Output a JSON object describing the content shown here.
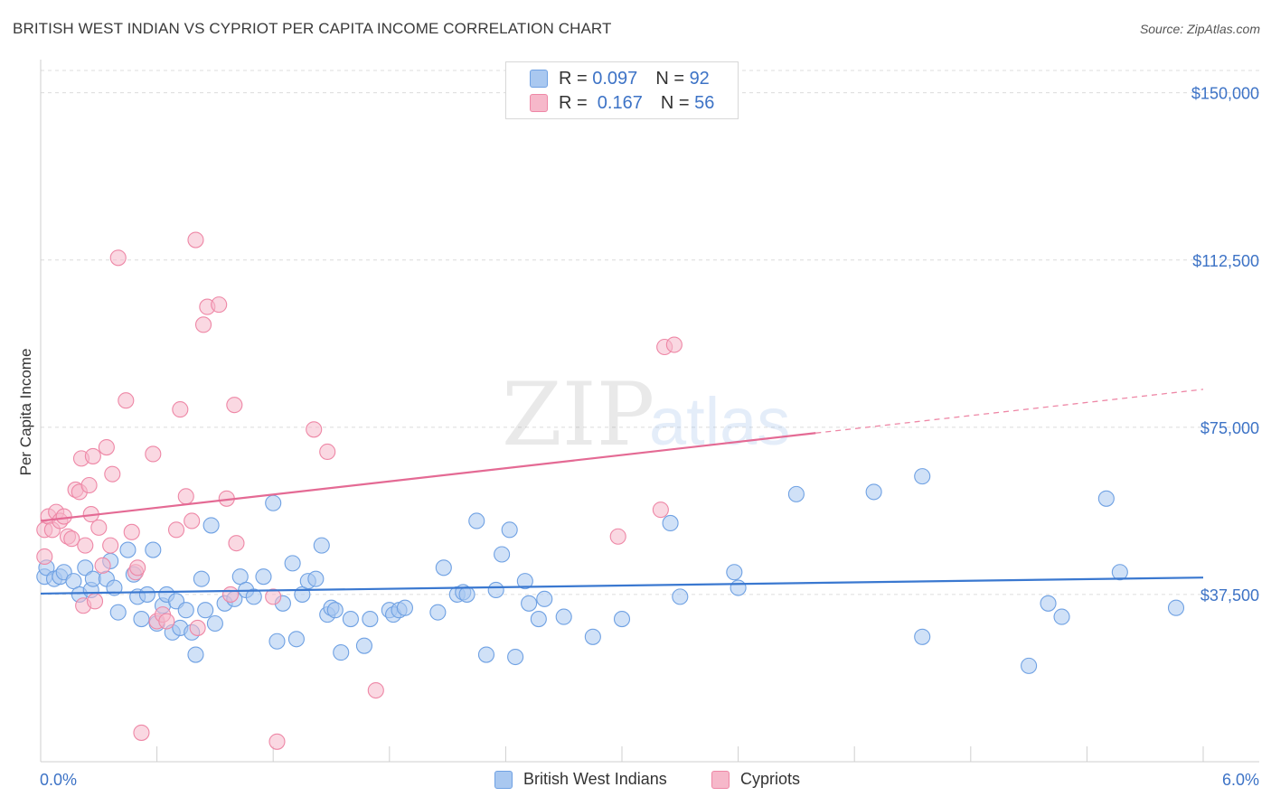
{
  "title": "BRITISH WEST INDIAN VS CYPRIOT PER CAPITA INCOME CORRELATION CHART",
  "source": "Source: ZipAtlas.com",
  "watermark": {
    "zip": "ZIP",
    "atlas": "atlas"
  },
  "legend": {
    "rows": [
      {
        "r_label": "R = ",
        "r_value": "0.097",
        "n_label": "N = ",
        "n_value": "92",
        "color": "#a9c8f0"
      },
      {
        "r_label": "R = ",
        "r_value": " 0.167",
        "n_label": "N = ",
        "n_value": "56",
        "color": "#f6b8ca"
      }
    ]
  },
  "bottom_legend": {
    "items": [
      {
        "label": "British West Indians",
        "color": "#a9c8f0"
      },
      {
        "label": "Cypriots",
        "color": "#f6b8ca"
      }
    ]
  },
  "chart_data": {
    "type": "scatter",
    "title": "BRITISH WEST INDIAN VS CYPRIOT PER CAPITA INCOME CORRELATION CHART",
    "xlabel": "",
    "ylabel": "Per Capita Income",
    "xlim": [
      0,
      6
    ],
    "ylim": [
      0,
      155000
    ],
    "x_tick_labels": [
      "0.0%",
      "6.0%"
    ],
    "y_ticks": [
      37500,
      75000,
      112500,
      150000
    ],
    "y_tick_labels": [
      "$37,500",
      "$75,000",
      "$112,500",
      "$150,000"
    ],
    "grid": true,
    "legend_position": "top-center",
    "series": [
      {
        "name": "British West Indians",
        "color": "#6fa1e3",
        "fill": "#a9c8f0",
        "points": [
          [
            0.02,
            41500
          ],
          [
            0.03,
            43500
          ],
          [
            0.07,
            41000
          ],
          [
            0.1,
            41500
          ],
          [
            0.12,
            42500
          ],
          [
            0.17,
            40500
          ],
          [
            0.2,
            37500
          ],
          [
            0.23,
            43500
          ],
          [
            0.26,
            38500
          ],
          [
            0.27,
            41000
          ],
          [
            0.34,
            41000
          ],
          [
            0.36,
            45000
          ],
          [
            0.38,
            39000
          ],
          [
            0.4,
            33500
          ],
          [
            0.45,
            47500
          ],
          [
            0.48,
            42000
          ],
          [
            0.5,
            37000
          ],
          [
            0.52,
            32000
          ],
          [
            0.55,
            37500
          ],
          [
            0.58,
            47500
          ],
          [
            0.6,
            31000
          ],
          [
            0.63,
            35000
          ],
          [
            0.65,
            37500
          ],
          [
            0.68,
            29000
          ],
          [
            0.7,
            36000
          ],
          [
            0.72,
            30000
          ],
          [
            0.75,
            34000
          ],
          [
            0.78,
            29000
          ],
          [
            0.8,
            24000
          ],
          [
            0.83,
            41000
          ],
          [
            0.85,
            34000
          ],
          [
            0.88,
            53000
          ],
          [
            0.9,
            31000
          ],
          [
            0.95,
            35500
          ],
          [
            1.0,
            36500
          ],
          [
            1.03,
            41500
          ],
          [
            1.06,
            38500
          ],
          [
            1.1,
            37000
          ],
          [
            1.15,
            41500
          ],
          [
            1.2,
            58000
          ],
          [
            1.22,
            27000
          ],
          [
            1.25,
            35500
          ],
          [
            1.3,
            44500
          ],
          [
            1.32,
            27500
          ],
          [
            1.35,
            37500
          ],
          [
            1.38,
            40500
          ],
          [
            1.42,
            41000
          ],
          [
            1.45,
            48500
          ],
          [
            1.48,
            33000
          ],
          [
            1.5,
            34500
          ],
          [
            1.52,
            34000
          ],
          [
            1.55,
            24500
          ],
          [
            1.6,
            32000
          ],
          [
            1.67,
            26000
          ],
          [
            1.7,
            32000
          ],
          [
            1.8,
            34000
          ],
          [
            1.82,
            33000
          ],
          [
            1.85,
            34000
          ],
          [
            1.88,
            34500
          ],
          [
            2.05,
            33500
          ],
          [
            2.08,
            43500
          ],
          [
            2.15,
            37500
          ],
          [
            2.18,
            38000
          ],
          [
            2.2,
            37500
          ],
          [
            2.25,
            54000
          ],
          [
            2.3,
            24000
          ],
          [
            2.35,
            38500
          ],
          [
            2.38,
            46500
          ],
          [
            2.42,
            52000
          ],
          [
            2.45,
            23500
          ],
          [
            2.5,
            40500
          ],
          [
            2.52,
            35500
          ],
          [
            2.57,
            32000
          ],
          [
            2.6,
            36500
          ],
          [
            2.7,
            32500
          ],
          [
            2.85,
            28000
          ],
          [
            3.0,
            32000
          ],
          [
            3.25,
            53500
          ],
          [
            3.3,
            37000
          ],
          [
            3.58,
            42500
          ],
          [
            3.6,
            39000
          ],
          [
            3.9,
            60000
          ],
          [
            4.3,
            60500
          ],
          [
            4.55,
            64000
          ],
          [
            4.55,
            28000
          ],
          [
            5.1,
            21500
          ],
          [
            5.2,
            35500
          ],
          [
            5.27,
            32500
          ],
          [
            5.5,
            59000
          ],
          [
            5.57,
            42500
          ],
          [
            5.86,
            34500
          ]
        ],
        "trend": {
          "x0": 0,
          "y0": 37700,
          "x1": 6,
          "y1": 41300
        }
      },
      {
        "name": "Cypriots",
        "color": "#ee87a6",
        "fill": "#f6b8ca",
        "points": [
          [
            0.02,
            52000
          ],
          [
            0.02,
            46000
          ],
          [
            0.04,
            55000
          ],
          [
            0.06,
            52000
          ],
          [
            0.08,
            56000
          ],
          [
            0.1,
            54000
          ],
          [
            0.12,
            55000
          ],
          [
            0.14,
            50500
          ],
          [
            0.16,
            50000
          ],
          [
            0.18,
            61000
          ],
          [
            0.2,
            60500
          ],
          [
            0.21,
            68000
          ],
          [
            0.22,
            35000
          ],
          [
            0.23,
            48500
          ],
          [
            0.25,
            62000
          ],
          [
            0.26,
            55500
          ],
          [
            0.27,
            68500
          ],
          [
            0.28,
            36000
          ],
          [
            0.3,
            52500
          ],
          [
            0.32,
            44000
          ],
          [
            0.34,
            70500
          ],
          [
            0.36,
            48500
          ],
          [
            0.37,
            64500
          ],
          [
            0.4,
            113000
          ],
          [
            0.44,
            81000
          ],
          [
            0.47,
            51500
          ],
          [
            0.49,
            42500
          ],
          [
            0.5,
            43500
          ],
          [
            0.52,
            6500
          ],
          [
            0.58,
            69000
          ],
          [
            0.6,
            31500
          ],
          [
            0.63,
            33000
          ],
          [
            0.65,
            31500
          ],
          [
            0.7,
            52000
          ],
          [
            0.72,
            79000
          ],
          [
            0.75,
            59500
          ],
          [
            0.78,
            54000
          ],
          [
            0.8,
            117000
          ],
          [
            0.81,
            30000
          ],
          [
            0.84,
            98000
          ],
          [
            0.86,
            102000
          ],
          [
            0.92,
            102500
          ],
          [
            0.96,
            59000
          ],
          [
            0.98,
            37500
          ],
          [
            1.0,
            80000
          ],
          [
            1.01,
            49000
          ],
          [
            1.2,
            37000
          ],
          [
            1.22,
            4500
          ],
          [
            1.41,
            74500
          ],
          [
            1.48,
            69500
          ],
          [
            1.73,
            16000
          ],
          [
            2.98,
            50500
          ],
          [
            3.2,
            56500
          ],
          [
            3.22,
            93000
          ],
          [
            3.27,
            93500
          ]
        ],
        "trend": {
          "x0": 0,
          "y0": 54000,
          "x1": 4.0,
          "y1": 73700
        },
        "trend_dashed": {
          "x0": 4.0,
          "y0": 73700,
          "x1": 6,
          "y1": 83500
        }
      }
    ]
  }
}
